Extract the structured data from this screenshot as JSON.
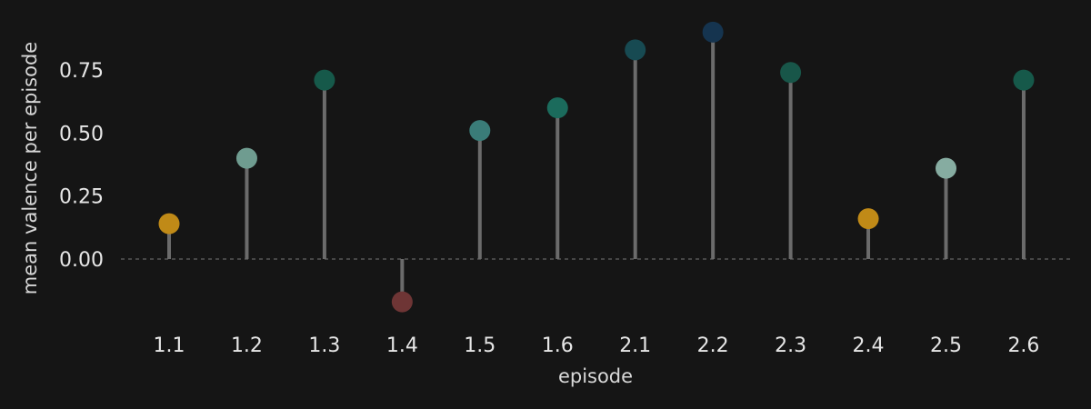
{
  "chart_data": {
    "type": "lollipop",
    "xlabel": "episode",
    "ylabel": "mean valence per episode",
    "categories": [
      "1.1",
      "1.2",
      "1.3",
      "1.4",
      "1.5",
      "1.6",
      "2.1",
      "2.2",
      "2.3",
      "2.4",
      "2.5",
      "2.6"
    ],
    "values": [
      0.14,
      0.4,
      0.71,
      -0.17,
      0.51,
      0.6,
      0.83,
      0.9,
      0.74,
      0.16,
      0.36,
      0.71
    ],
    "colors": [
      "#c08a17",
      "#6f9c90",
      "#16594a",
      "#6e3535",
      "#3a7c78",
      "#1b6b5c",
      "#174a52",
      "#15344f",
      "#185649",
      "#c08a17",
      "#86aca1",
      "#16594a"
    ],
    "yticks": [
      0.0,
      0.25,
      0.5,
      0.75
    ],
    "ylim": [
      -0.26,
      0.95
    ],
    "grid": false,
    "baseline": 0
  }
}
